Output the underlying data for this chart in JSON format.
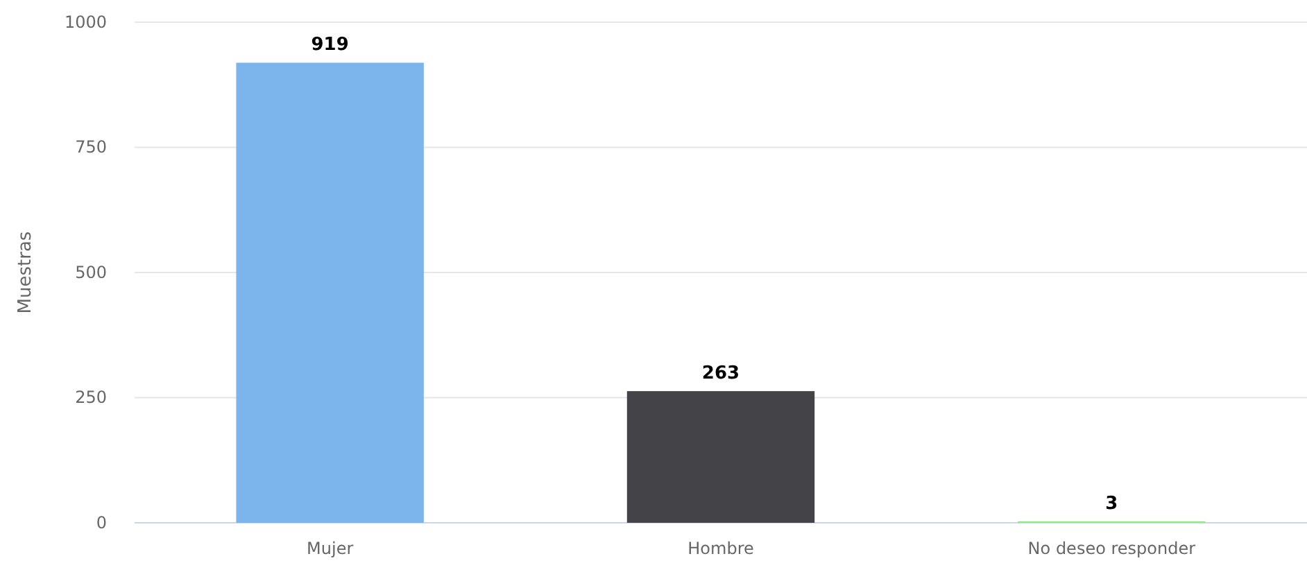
{
  "chart_data": {
    "type": "bar",
    "ylabel": "Muestras",
    "categories": [
      "Mujer",
      "Hombre",
      "No deseo responder"
    ],
    "values": [
      919,
      263,
      3
    ],
    "colors": [
      "#7cb5ec",
      "#434348",
      "#90ed7d"
    ],
    "ylim": [
      0,
      1000
    ],
    "yticks": [
      0,
      250,
      500,
      750,
      1000
    ],
    "grid": "y",
    "data_labels": true
  }
}
